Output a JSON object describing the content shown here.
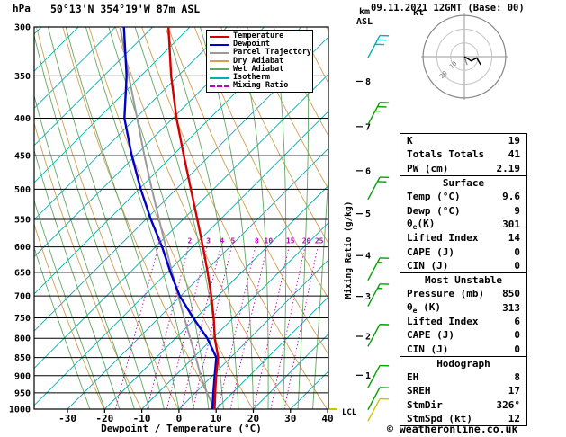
{
  "header": {
    "station": "50°13'N 354°19'W 87m ASL",
    "datetime": "09.11.2021 12GMT (Base: 00)",
    "pressure_unit": "hPa",
    "km_label": "km",
    "asl_label": "ASL",
    "x_axis_title": "Dewpoint / Temperature (°C)",
    "mixing_axis_label": "Mixing Ratio (g/kg)",
    "lcl_label": "LCL",
    "copyright": "© weatheronline.co.uk"
  },
  "legend": [
    {
      "label": "Temperature",
      "color": "#d40000",
      "style": "solid"
    },
    {
      "label": "Dewpoint",
      "color": "#0000c8",
      "style": "solid"
    },
    {
      "label": "Parcel Trajectory",
      "color": "#9a9a9a",
      "style": "solid"
    },
    {
      "label": "Dry Adiabat",
      "color": "#cf9f52",
      "style": "solid"
    },
    {
      "label": "Wet Adiabat",
      "color": "#62a862",
      "style": "solid"
    },
    {
      "label": "Isotherm",
      "color": "#00b0b0",
      "style": "solid"
    },
    {
      "label": "Mixing Ratio",
      "color": "#c000c0",
      "style": "dashed"
    }
  ],
  "chart_data": {
    "type": "line",
    "title": "Skew-T log-P sounding",
    "x_axis": {
      "title": "Dewpoint / Temperature (°C)",
      "unit": "°C",
      "ticks": [
        -30,
        -20,
        -10,
        0,
        10,
        20,
        30,
        40
      ]
    },
    "y_axis": {
      "title": "hPa",
      "scale": "log",
      "ticks": [
        300,
        350,
        400,
        450,
        500,
        550,
        600,
        650,
        700,
        750,
        800,
        850,
        900,
        950,
        1000
      ]
    },
    "km_ticks": [
      1,
      2,
      3,
      4,
      5,
      6,
      7,
      8
    ],
    "mixing_ratio_values": [
      1,
      2,
      3,
      4,
      5,
      8,
      10,
      15,
      20,
      25
    ],
    "pressure_levels": [
      1000,
      950,
      900,
      850,
      800,
      750,
      700,
      650,
      600,
      550,
      500,
      450,
      400,
      350,
      300
    ],
    "series": [
      {
        "name": "Temperature",
        "color": "#d40000",
        "width": 2.4,
        "values": [
          9.6,
          8,
          6.4,
          5,
          2,
          -0.5,
          -3.5,
          -7,
          -11,
          -15.5,
          -20.5,
          -26,
          -32,
          -38,
          -44
        ]
      },
      {
        "name": "Dewpoint",
        "color": "#0000c8",
        "width": 2.4,
        "values": [
          9,
          7.5,
          6,
          4.5,
          0,
          -6,
          -12,
          -17,
          -22,
          -28,
          -34,
          -40,
          -46,
          -50,
          -56
        ]
      },
      {
        "name": "Parcel Trajectory",
        "color": "#9a9a9a",
        "width": 2,
        "values": [
          9.6,
          5.8,
          2.2,
          -1,
          -4.6,
          -8.4,
          -12.4,
          -16.6,
          -21,
          -25.8,
          -31,
          -36.6,
          -42.6,
          -49.4,
          -57
        ]
      }
    ],
    "wind_barbs": [
      {
        "pressure": 320,
        "speed_kt": 30,
        "color": "#00b0b0"
      },
      {
        "pressure": 395,
        "speed_kt": 25,
        "color": "#00a000"
      },
      {
        "pressure": 500,
        "speed_kt": 20,
        "color": "#00a000"
      },
      {
        "pressure": 645,
        "speed_kt": 15,
        "color": "#00a000"
      },
      {
        "pressure": 700,
        "speed_kt": 15,
        "color": "#00a000"
      },
      {
        "pressure": 795,
        "speed_kt": 10,
        "color": "#00a000"
      },
      {
        "pressure": 905,
        "speed_kt": 10,
        "color": "#00a000"
      },
      {
        "pressure": 970,
        "speed_kt": 10,
        "color": "#00a000"
      },
      {
        "pressure": 1005,
        "speed_kt": 10,
        "color": "#d0c000"
      }
    ]
  },
  "hodograph": {
    "unit": "kt",
    "rings": [
      10,
      20,
      30
    ],
    "ring_labels": [
      "10",
      "20"
    ],
    "trace": [
      [
        0,
        0
      ],
      [
        5,
        3
      ],
      [
        9,
        1
      ],
      [
        12,
        6
      ]
    ],
    "trace2": [
      [
        0,
        0
      ],
      [
        2,
        6
      ]
    ]
  },
  "panel": {
    "rows": [
      {
        "type": "row",
        "label": "K",
        "value": "19"
      },
      {
        "type": "row",
        "label": "Totals Totals",
        "value": "41"
      },
      {
        "type": "row",
        "label": "PW (cm)",
        "value": "2.19"
      },
      {
        "type": "header",
        "label": "Surface"
      },
      {
        "type": "row",
        "label": "Temp (°C)",
        "value": "9.6"
      },
      {
        "type": "row",
        "label": "Dewp (°C)",
        "value": "9"
      },
      {
        "type": "row",
        "label": "θe(K)",
        "value": "301"
      },
      {
        "type": "row",
        "label": "Lifted Index",
        "value": "14"
      },
      {
        "type": "row",
        "label": "CAPE (J)",
        "value": "0"
      },
      {
        "type": "row",
        "label": "CIN (J)",
        "value": "0"
      },
      {
        "type": "header",
        "label": "Most Unstable"
      },
      {
        "type": "row",
        "label": "Pressure (mb)",
        "value": "850"
      },
      {
        "type": "row",
        "label": "θe (K)",
        "value": "313"
      },
      {
        "type": "row",
        "label": "Lifted Index",
        "value": "6"
      },
      {
        "type": "row",
        "label": "CAPE (J)",
        "value": "0"
      },
      {
        "type": "row",
        "label": "CIN (J)",
        "value": "0"
      },
      {
        "type": "header",
        "label": "Hodograph"
      },
      {
        "type": "row",
        "label": "EH",
        "value": "8"
      },
      {
        "type": "row",
        "label": "SREH",
        "value": "17"
      },
      {
        "type": "row",
        "label": "StmDir",
        "value": "326°"
      },
      {
        "type": "row",
        "label": "StmSpd (kt)",
        "value": "12"
      }
    ]
  }
}
